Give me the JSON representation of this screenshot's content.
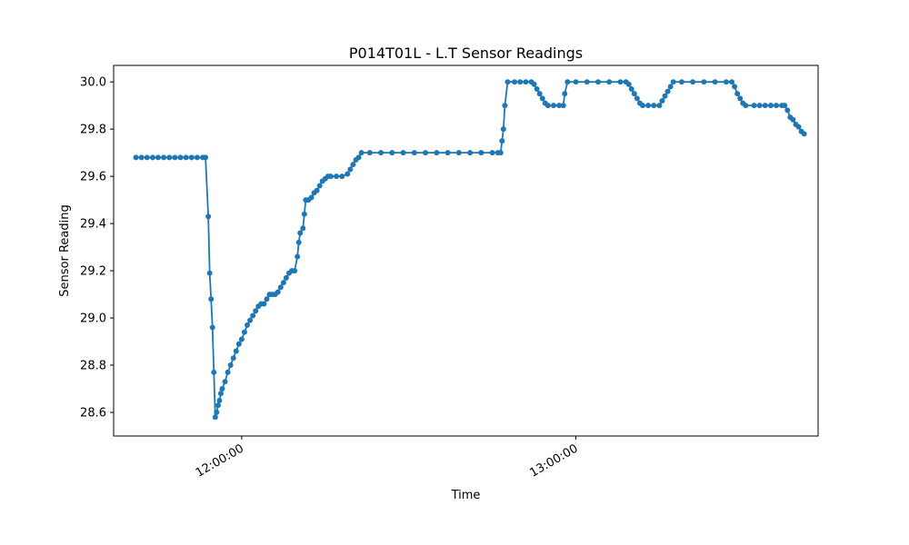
{
  "chart_data": {
    "type": "line",
    "title": "P014T01L - L.T Sensor Readings",
    "xlabel": "Time",
    "ylabel": "Sensor Reading",
    "ylim": [
      28.5,
      30.07
    ],
    "xlim": [
      "11:37:00",
      "13:43:30"
    ],
    "x_ticks": [
      "12:00:00",
      "13:00:00"
    ],
    "y_ticks": [
      28.6,
      28.8,
      29.0,
      29.2,
      29.4,
      29.6,
      29.8,
      30.0
    ],
    "grid": false,
    "marker": "circle",
    "color": "#1f77b4",
    "series": [
      {
        "points": [
          [
            "11:41:00",
            29.68
          ],
          [
            "11:42:00",
            29.68
          ],
          [
            "11:43:00",
            29.68
          ],
          [
            "11:44:00",
            29.68
          ],
          [
            "11:45:00",
            29.68
          ],
          [
            "11:46:00",
            29.68
          ],
          [
            "11:47:00",
            29.68
          ],
          [
            "11:48:00",
            29.68
          ],
          [
            "11:49:00",
            29.68
          ],
          [
            "11:50:00",
            29.68
          ],
          [
            "11:51:00",
            29.68
          ],
          [
            "11:52:00",
            29.68
          ],
          [
            "11:53:00",
            29.68
          ],
          [
            "11:53:30",
            29.68
          ],
          [
            "11:54:00",
            29.43
          ],
          [
            "11:54:15",
            29.19
          ],
          [
            "11:54:30",
            29.08
          ],
          [
            "11:54:45",
            28.96
          ],
          [
            "11:55:00",
            28.77
          ],
          [
            "11:55:15",
            28.58
          ],
          [
            "11:55:30",
            28.6
          ],
          [
            "11:55:45",
            28.63
          ],
          [
            "11:56:00",
            28.65
          ],
          [
            "11:56:15",
            28.68
          ],
          [
            "11:56:30",
            28.7
          ],
          [
            "11:57:00",
            28.73
          ],
          [
            "11:57:30",
            28.77
          ],
          [
            "11:58:00",
            28.8
          ],
          [
            "11:58:30",
            28.83
          ],
          [
            "11:59:00",
            28.86
          ],
          [
            "11:59:30",
            28.89
          ],
          [
            "12:00:00",
            28.91
          ],
          [
            "12:00:30",
            28.94
          ],
          [
            "12:01:00",
            28.97
          ],
          [
            "12:01:30",
            28.99
          ],
          [
            "12:02:00",
            29.01
          ],
          [
            "12:02:30",
            29.03
          ],
          [
            "12:03:00",
            29.05
          ],
          [
            "12:03:30",
            29.06
          ],
          [
            "12:04:00",
            29.06
          ],
          [
            "12:04:30",
            29.08
          ],
          [
            "12:05:00",
            29.1
          ],
          [
            "12:05:30",
            29.1
          ],
          [
            "12:06:00",
            29.1
          ],
          [
            "12:06:30",
            29.11
          ],
          [
            "12:07:00",
            29.13
          ],
          [
            "12:07:30",
            29.15
          ],
          [
            "12:08:00",
            29.17
          ],
          [
            "12:08:30",
            29.19
          ],
          [
            "12:09:00",
            29.2
          ],
          [
            "12:09:30",
            29.2
          ],
          [
            "12:10:00",
            29.26
          ],
          [
            "12:10:15",
            29.32
          ],
          [
            "12:10:30",
            29.36
          ],
          [
            "12:11:00",
            29.38
          ],
          [
            "12:11:15",
            29.44
          ],
          [
            "12:11:30",
            29.5
          ],
          [
            "12:12:00",
            29.5
          ],
          [
            "12:12:30",
            29.51
          ],
          [
            "12:13:00",
            29.53
          ],
          [
            "12:13:30",
            29.54
          ],
          [
            "12:14:00",
            29.56
          ],
          [
            "12:14:30",
            29.58
          ],
          [
            "12:15:00",
            29.59
          ],
          [
            "12:15:30",
            29.6
          ],
          [
            "12:16:00",
            29.6
          ],
          [
            "12:17:00",
            29.6
          ],
          [
            "12:18:00",
            29.6
          ],
          [
            "12:19:00",
            29.61
          ],
          [
            "12:19:30",
            29.63
          ],
          [
            "12:20:00",
            29.65
          ],
          [
            "12:20:30",
            29.67
          ],
          [
            "12:21:00",
            29.68
          ],
          [
            "12:21:30",
            29.7
          ],
          [
            "12:23:00",
            29.7
          ],
          [
            "12:25:00",
            29.7
          ],
          [
            "12:27:00",
            29.7
          ],
          [
            "12:29:00",
            29.7
          ],
          [
            "12:31:00",
            29.7
          ],
          [
            "12:33:00",
            29.7
          ],
          [
            "12:35:00",
            29.7
          ],
          [
            "12:37:00",
            29.7
          ],
          [
            "12:39:00",
            29.7
          ],
          [
            "12:41:00",
            29.7
          ],
          [
            "12:43:00",
            29.7
          ],
          [
            "12:45:00",
            29.7
          ],
          [
            "12:46:00",
            29.7
          ],
          [
            "12:46:30",
            29.7
          ],
          [
            "12:46:45",
            29.75
          ],
          [
            "12:47:00",
            29.8
          ],
          [
            "12:47:15",
            29.9
          ],
          [
            "12:47:45",
            30.0
          ],
          [
            "12:49:00",
            30.0
          ],
          [
            "12:50:00",
            30.0
          ],
          [
            "12:51:00",
            30.0
          ],
          [
            "12:52:00",
            30.0
          ],
          [
            "12:52:30",
            29.99
          ],
          [
            "12:53:00",
            29.97
          ],
          [
            "12:53:30",
            29.95
          ],
          [
            "12:54:00",
            29.93
          ],
          [
            "12:54:30",
            29.91
          ],
          [
            "12:55:00",
            29.9
          ],
          [
            "12:56:00",
            29.9
          ],
          [
            "12:57:00",
            29.9
          ],
          [
            "12:57:45",
            29.9
          ],
          [
            "12:58:00",
            29.95
          ],
          [
            "12:58:30",
            30.0
          ],
          [
            "13:00:00",
            30.0
          ],
          [
            "13:02:00",
            30.0
          ],
          [
            "13:04:00",
            30.0
          ],
          [
            "13:06:00",
            30.0
          ],
          [
            "13:08:00",
            30.0
          ],
          [
            "13:09:00",
            30.0
          ],
          [
            "13:09:30",
            29.99
          ],
          [
            "13:10:00",
            29.97
          ],
          [
            "13:10:30",
            29.95
          ],
          [
            "13:11:00",
            29.93
          ],
          [
            "13:11:30",
            29.91
          ],
          [
            "13:12:00",
            29.9
          ],
          [
            "13:13:00",
            29.9
          ],
          [
            "13:14:00",
            29.9
          ],
          [
            "13:15:00",
            29.9
          ],
          [
            "13:15:30",
            29.92
          ],
          [
            "13:16:00",
            29.94
          ],
          [
            "13:16:30",
            29.96
          ],
          [
            "13:17:00",
            29.98
          ],
          [
            "13:17:30",
            30.0
          ],
          [
            "13:19:00",
            30.0
          ],
          [
            "13:21:00",
            30.0
          ],
          [
            "13:23:00",
            30.0
          ],
          [
            "13:25:00",
            30.0
          ],
          [
            "13:27:00",
            30.0
          ],
          [
            "13:28:00",
            30.0
          ],
          [
            "13:28:30",
            29.98
          ],
          [
            "13:29:00",
            29.95
          ],
          [
            "13:29:30",
            29.93
          ],
          [
            "13:30:00",
            29.91
          ],
          [
            "13:30:30",
            29.9
          ],
          [
            "13:32:00",
            29.9
          ],
          [
            "13:33:00",
            29.9
          ],
          [
            "13:34:00",
            29.9
          ],
          [
            "13:35:00",
            29.9
          ],
          [
            "13:36:00",
            29.9
          ],
          [
            "13:37:00",
            29.9
          ],
          [
            "13:37:30",
            29.9
          ],
          [
            "13:38:00",
            29.88
          ],
          [
            "13:38:30",
            29.85
          ],
          [
            "13:39:00",
            29.84
          ],
          [
            "13:39:30",
            29.82
          ],
          [
            "13:40:00",
            29.81
          ],
          [
            "13:40:30",
            29.79
          ],
          [
            "13:41:00",
            29.78
          ]
        ]
      }
    ]
  }
}
